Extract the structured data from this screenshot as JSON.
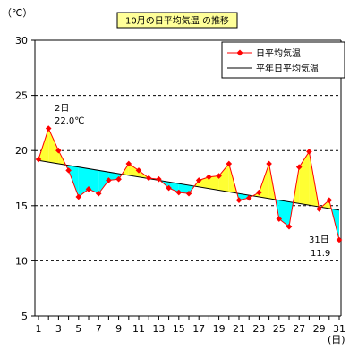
{
  "chart_data": {
    "type": "line",
    "title": "10月の日平均気温 の推移",
    "y_unit": "（℃）",
    "x_unit": "(日)",
    "ylim": [
      5,
      30
    ],
    "yticks": [
      5,
      10,
      15,
      20,
      25,
      30
    ],
    "xticks": [
      1,
      3,
      5,
      7,
      9,
      11,
      13,
      15,
      17,
      19,
      21,
      23,
      25,
      27,
      29,
      31
    ],
    "grid": "horizontal dashed",
    "legend_position": "top-right",
    "colors": {
      "actual": "#ff0000",
      "normal": "#000000",
      "above_fill": "#ffff33",
      "below_fill": "#00ffff"
    },
    "series": [
      {
        "name": "日平均気温",
        "x": [
          1,
          2,
          3,
          4,
          5,
          6,
          7,
          8,
          9,
          10,
          11,
          12,
          13,
          14,
          15,
          16,
          17,
          18,
          19,
          20,
          21,
          22,
          23,
          24,
          25,
          26,
          27,
          28,
          29,
          30,
          31
        ],
        "values": [
          19.2,
          22.0,
          20.0,
          18.2,
          15.8,
          16.5,
          16.1,
          17.3,
          17.4,
          18.8,
          18.2,
          17.5,
          17.4,
          16.6,
          16.2,
          16.1,
          17.3,
          17.6,
          17.7,
          18.8,
          15.5,
          15.7,
          16.2,
          18.8,
          13.8,
          13.1,
          18.5,
          19.9,
          14.7,
          15.5,
          11.9
        ]
      },
      {
        "name": "平年日平均気温",
        "x": [
          1,
          31
        ],
        "values": [
          19.1,
          14.6
        ]
      }
    ],
    "annotations": [
      {
        "day": "2日",
        "value": "22.0℃"
      },
      {
        "day": "31日",
        "value": "11.9"
      }
    ]
  }
}
